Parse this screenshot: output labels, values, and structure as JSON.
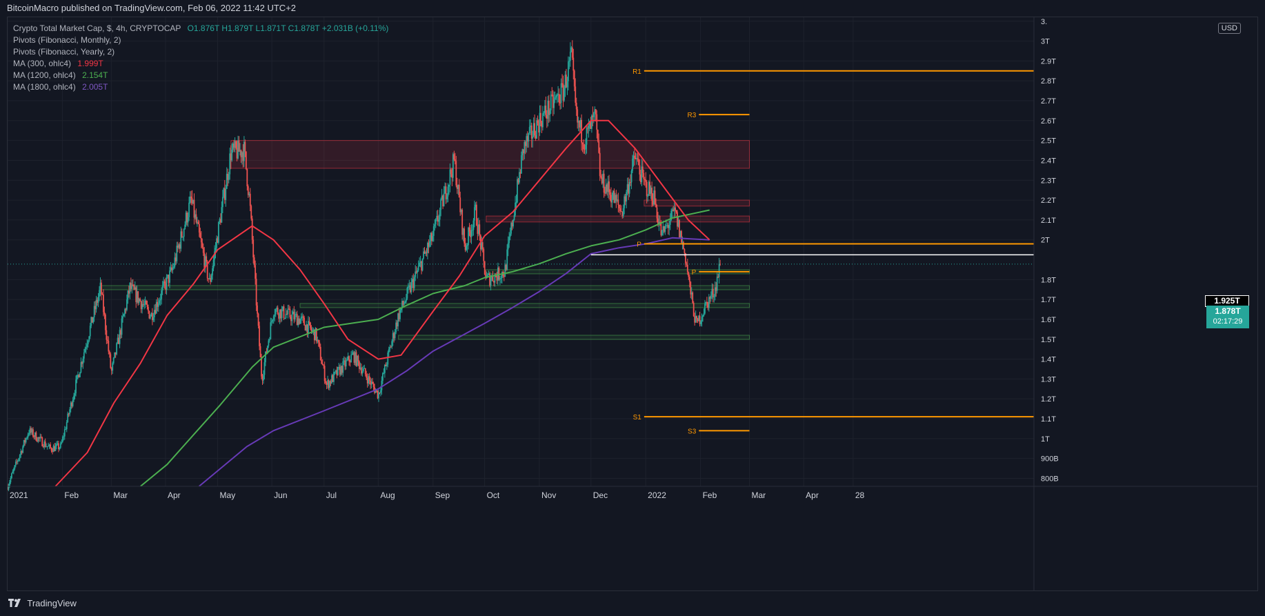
{
  "header": {
    "published": "BitcoinMacro published on TradingView.com, Feb 06, 2022 11:42 UTC+2"
  },
  "footer": {
    "brand": "TradingView"
  },
  "legend": {
    "symbol": "Crypto Total Market Cap, $, 4h, CRYPTOCAP",
    "ohlc": "O1.876T  H1.879T  L1.871T  C1.878T  +2.031B (+0.11%)",
    "pivots_monthly": "Pivots (Fibonacci, Monthly, 2)",
    "pivots_yearly": "Pivots (Fibonacci, Yearly, 2)",
    "ma300_label": "MA (300, ohlc4)",
    "ma300_value": "1.999T",
    "ma1200_label": "MA (1200, ohlc4)",
    "ma1200_value": "2.154T",
    "ma1800_label": "MA (1800, ohlc4)",
    "ma1800_value": "2.005T"
  },
  "currency": "USD",
  "price_tags": {
    "level": "1.925T",
    "last": "1.878T",
    "countdown": "02:17:29"
  },
  "colors": {
    "background": "#131722",
    "grid": "#1e222d",
    "up": "#26a69a",
    "down": "#ef5350",
    "ma300": "#f23645",
    "ma1200": "#4caf50",
    "ma1800": "#673ab7",
    "pivot": "#ff9800"
  },
  "chart_data": {
    "type": "candlestick",
    "title": "Crypto Total Market Cap, $, 4h, CRYPTOCAP",
    "y_ticks": [
      {
        "v": 0.8,
        "label": "800B"
      },
      {
        "v": 0.9,
        "label": "900B"
      },
      {
        "v": 1.0,
        "label": "1T"
      },
      {
        "v": 1.1,
        "label": "1.1T"
      },
      {
        "v": 1.2,
        "label": "1.2T"
      },
      {
        "v": 1.3,
        "label": "1.3T"
      },
      {
        "v": 1.4,
        "label": "1.4T"
      },
      {
        "v": 1.5,
        "label": "1.5T"
      },
      {
        "v": 1.6,
        "label": "1.6T"
      },
      {
        "v": 1.7,
        "label": "1.7T"
      },
      {
        "v": 1.8,
        "label": "1.8T"
      },
      {
        "v": 2.0,
        "label": "2T"
      },
      {
        "v": 2.1,
        "label": "2.1T"
      },
      {
        "v": 2.2,
        "label": "2.2T"
      },
      {
        "v": 2.3,
        "label": "2.3T"
      },
      {
        "v": 2.4,
        "label": "2.4T"
      },
      {
        "v": 2.5,
        "label": "2.5T"
      },
      {
        "v": 2.6,
        "label": "2.6T"
      },
      {
        "v": 2.7,
        "label": "2.7T"
      },
      {
        "v": 2.8,
        "label": "2.8T"
      },
      {
        "v": 2.9,
        "label": "2.9T"
      },
      {
        "v": 3.0,
        "label": "3T"
      },
      {
        "v": 3.1,
        "label": "3."
      }
    ],
    "x_ticks": [
      {
        "m": 0,
        "label": "2021"
      },
      {
        "m": 1.03,
        "label": "Feb"
      },
      {
        "m": 1.95,
        "label": "Mar"
      },
      {
        "m": 2.97,
        "label": "Apr"
      },
      {
        "m": 3.95,
        "label": "May"
      },
      {
        "m": 4.97,
        "label": "Jun"
      },
      {
        "m": 5.95,
        "label": "Jul"
      },
      {
        "m": 6.97,
        "label": "Aug"
      },
      {
        "m": 8.0,
        "label": "Sep"
      },
      {
        "m": 8.97,
        "label": "Oct"
      },
      {
        "m": 10.0,
        "label": "Nov"
      },
      {
        "m": 10.97,
        "label": "Dec"
      },
      {
        "m": 12.0,
        "label": "2022"
      },
      {
        "m": 13.03,
        "label": "Feb"
      },
      {
        "m": 13.95,
        "label": "Mar"
      },
      {
        "m": 14.97,
        "label": "Apr"
      },
      {
        "m": 15.9,
        "label": "28"
      }
    ],
    "price_path": [
      [
        0.0,
        0.76
      ],
      [
        0.4,
        1.04
      ],
      [
        0.8,
        0.95
      ],
      [
        1.0,
        0.96
      ],
      [
        1.4,
        1.4
      ],
      [
        1.75,
        1.76
      ],
      [
        1.95,
        1.33
      ],
      [
        2.3,
        1.76
      ],
      [
        2.7,
        1.62
      ],
      [
        3.1,
        1.85
      ],
      [
        3.45,
        2.2
      ],
      [
        3.8,
        1.78
      ],
      [
        4.2,
        2.44
      ],
      [
        4.45,
        2.45
      ],
      [
        4.55,
        2.2
      ],
      [
        4.7,
        1.6
      ],
      [
        4.78,
        1.3
      ],
      [
        5.0,
        1.65
      ],
      [
        5.5,
        1.6
      ],
      [
        5.8,
        1.52
      ],
      [
        6.0,
        1.27
      ],
      [
        6.5,
        1.42
      ],
      [
        6.97,
        1.22
      ],
      [
        7.35,
        1.62
      ],
      [
        8.0,
        2.02
      ],
      [
        8.4,
        2.4
      ],
      [
        8.6,
        1.96
      ],
      [
        8.8,
        2.14
      ],
      [
        9.0,
        1.8
      ],
      [
        9.35,
        1.84
      ],
      [
        9.7,
        2.46
      ],
      [
        10.0,
        2.6
      ],
      [
        10.45,
        2.75
      ],
      [
        10.6,
        2.92
      ],
      [
        10.7,
        2.6
      ],
      [
        10.85,
        2.5
      ],
      [
        11.05,
        2.62
      ],
      [
        11.15,
        2.3
      ],
      [
        11.3,
        2.25
      ],
      [
        11.55,
        2.14
      ],
      [
        11.8,
        2.42
      ],
      [
        11.97,
        2.28
      ],
      [
        12.15,
        2.22
      ],
      [
        12.3,
        2.02
      ],
      [
        12.55,
        2.14
      ],
      [
        12.75,
        1.91
      ],
      [
        12.85,
        1.72
      ],
      [
        12.95,
        1.57
      ],
      [
        13.15,
        1.68
      ],
      [
        13.3,
        1.75
      ],
      [
        13.4,
        1.878
      ]
    ],
    "ma_300": [
      [
        0.9,
        0.76
      ],
      [
        1.5,
        0.93
      ],
      [
        2.0,
        1.18
      ],
      [
        2.5,
        1.38
      ],
      [
        3.0,
        1.62
      ],
      [
        3.5,
        1.78
      ],
      [
        3.95,
        1.95
      ],
      [
        4.6,
        2.07
      ],
      [
        5.0,
        2.0
      ],
      [
        5.5,
        1.85
      ],
      [
        5.95,
        1.68
      ],
      [
        6.4,
        1.5
      ],
      [
        6.97,
        1.4
      ],
      [
        7.4,
        1.42
      ],
      [
        8.0,
        1.64
      ],
      [
        8.5,
        1.82
      ],
      [
        8.97,
        2.02
      ],
      [
        9.5,
        2.14
      ],
      [
        10.0,
        2.3
      ],
      [
        10.5,
        2.46
      ],
      [
        10.97,
        2.6
      ],
      [
        11.3,
        2.6
      ],
      [
        11.8,
        2.46
      ],
      [
        12.3,
        2.28
      ],
      [
        12.8,
        2.1
      ],
      [
        13.2,
        2.0
      ]
    ],
    "ma_1200": [
      [
        2.5,
        0.76
      ],
      [
        3.0,
        0.87
      ],
      [
        3.5,
        1.02
      ],
      [
        4.0,
        1.17
      ],
      [
        4.6,
        1.36
      ],
      [
        5.0,
        1.46
      ],
      [
        5.95,
        1.56
      ],
      [
        6.97,
        1.6
      ],
      [
        7.5,
        1.67
      ],
      [
        8.0,
        1.73
      ],
      [
        8.6,
        1.77
      ],
      [
        8.97,
        1.81
      ],
      [
        9.5,
        1.84
      ],
      [
        10.0,
        1.88
      ],
      [
        10.5,
        1.93
      ],
      [
        10.97,
        1.97
      ],
      [
        11.5,
        2.0
      ],
      [
        12.0,
        2.05
      ],
      [
        12.5,
        2.11
      ],
      [
        13.2,
        2.15
      ]
    ],
    "ma_1800": [
      [
        3.6,
        0.76
      ],
      [
        4.5,
        0.96
      ],
      [
        5.0,
        1.04
      ],
      [
        5.95,
        1.14
      ],
      [
        6.97,
        1.25
      ],
      [
        7.5,
        1.34
      ],
      [
        8.0,
        1.44
      ],
      [
        8.97,
        1.58
      ],
      [
        9.5,
        1.66
      ],
      [
        10.0,
        1.74
      ],
      [
        10.5,
        1.83
      ],
      [
        10.97,
        1.93
      ],
      [
        11.5,
        1.96
      ],
      [
        12.0,
        1.98
      ],
      [
        12.5,
        2.01
      ],
      [
        13.2,
        2.0
      ]
    ],
    "zones": [
      {
        "m0": 4.2,
        "m1": 13.95,
        "v0": 2.36,
        "v1": 2.5,
        "kind": "resistance"
      },
      {
        "m0": 11.97,
        "m1": 13.95,
        "v0": 2.17,
        "v1": 2.2,
        "kind": "resistance"
      },
      {
        "m0": 9.0,
        "m1": 13.95,
        "v0": 2.09,
        "v1": 2.12,
        "kind": "resistance"
      },
      {
        "m0": 8.97,
        "m1": 13.95,
        "v0": 1.83,
        "v1": 1.85,
        "kind": "support"
      },
      {
        "m0": 1.75,
        "m1": 13.95,
        "v0": 1.75,
        "v1": 1.77,
        "kind": "support"
      },
      {
        "m0": 5.5,
        "m1": 13.95,
        "v0": 1.66,
        "v1": 1.68,
        "kind": "support"
      },
      {
        "m0": 7.35,
        "m1": 13.95,
        "v0": 1.5,
        "v1": 1.52,
        "kind": "support"
      }
    ],
    "pivots": [
      {
        "label": "R1",
        "value": 2.85,
        "m0": 11.97,
        "m1": 19.3
      },
      {
        "label": "R3",
        "value": 2.63,
        "m0": 13.0,
        "m1": 13.95
      },
      {
        "label": "P",
        "value": 1.98,
        "m0": 11.97,
        "m1": 19.3
      },
      {
        "label": "P",
        "value": 1.84,
        "m0": 13.0,
        "m1": 13.95
      },
      {
        "label": "S1",
        "value": 1.11,
        "m0": 11.97,
        "m1": 19.3
      },
      {
        "label": "S3",
        "value": 1.04,
        "m0": 13.0,
        "m1": 13.95
      }
    ],
    "level_line": {
      "value": 1.925,
      "m0": 10.97,
      "m1": 19.3
    },
    "last_price": 1.878,
    "ylim": [
      0.76,
      3.12
    ],
    "xlim_months": [
      0,
      19.3
    ]
  }
}
